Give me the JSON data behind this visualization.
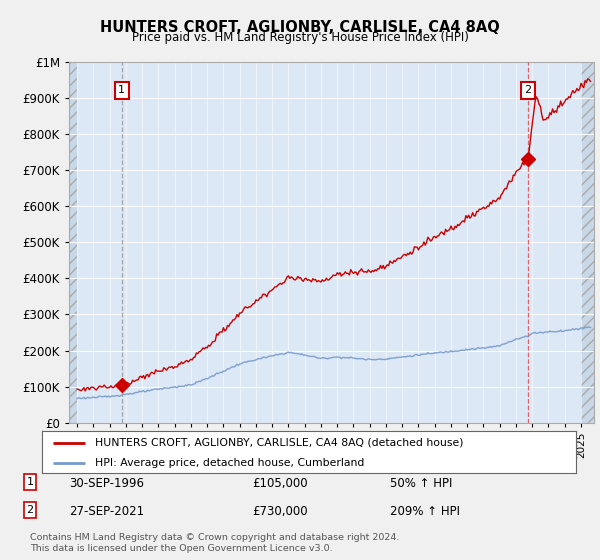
{
  "title": "HUNTERS CROFT, AGLIONBY, CARLISLE, CA4 8AQ",
  "subtitle": "Price paid vs. HM Land Registry's House Price Index (HPI)",
  "ylim": [
    0,
    1000000
  ],
  "yticks": [
    0,
    100000,
    200000,
    300000,
    400000,
    500000,
    600000,
    700000,
    800000,
    900000,
    1000000
  ],
  "ytick_labels": [
    "£0",
    "£100K",
    "£200K",
    "£300K",
    "£400K",
    "£500K",
    "£600K",
    "£700K",
    "£800K",
    "£900K",
    "£1M"
  ],
  "xmin": 1993.5,
  "xmax": 2025.8,
  "sale1_x": 1996.75,
  "sale1_y": 105000,
  "sale2_x": 2021.75,
  "sale2_y": 730000,
  "sale_color": "#cc0000",
  "hpi_color": "#7799cc",
  "vline1_color": "#888888",
  "vline2_color": "#dd4444",
  "marker_color": "#cc0000",
  "marker_size": 8,
  "label1": "1",
  "label2": "2",
  "legend_line1": "HUNTERS CROFT, AGLIONBY, CARLISLE, CA4 8AQ (detached house)",
  "legend_line2": "HPI: Average price, detached house, Cumberland",
  "note1_num": "1",
  "note1_date": "30-SEP-1996",
  "note1_price": "£105,000",
  "note1_hpi": "50% ↑ HPI",
  "note2_num": "2",
  "note2_date": "27-SEP-2021",
  "note2_price": "£730,000",
  "note2_hpi": "209% ↑ HPI",
  "footer": "Contains HM Land Registry data © Crown copyright and database right 2024.\nThis data is licensed under the Open Government Licence v3.0.",
  "background_color": "#f0f0f0",
  "plot_bg_color": "#dce8f5"
}
